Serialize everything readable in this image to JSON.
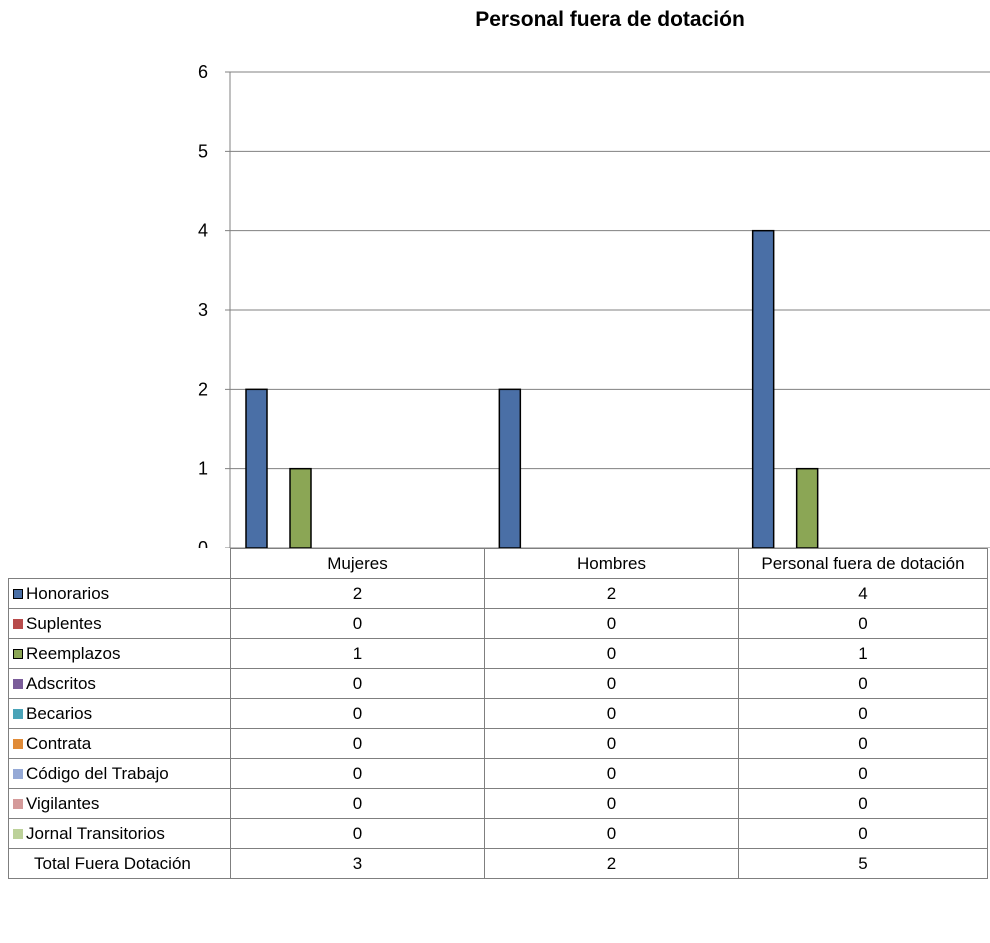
{
  "chart_data": {
    "type": "bar",
    "title": "Personal fuera de dotación",
    "categories": [
      "Mujeres",
      "Hombres",
      "Personal fuera de dotación"
    ],
    "ylim": [
      0,
      6
    ],
    "yticks": [
      "0",
      "1",
      "2",
      "3",
      "4",
      "5",
      "6"
    ],
    "grid": true,
    "legend": "data-table",
    "series": [
      {
        "name": "Honorarios",
        "color": "#4a6fa6",
        "values": [
          2,
          2,
          4
        ]
      },
      {
        "name": "Suplentes",
        "color": "#b84b4b",
        "values": [
          0,
          0,
          0
        ]
      },
      {
        "name": "Reemplazos",
        "color": "#8ba655",
        "values": [
          1,
          0,
          1
        ]
      },
      {
        "name": "Adscritos",
        "color": "#7a5c99",
        "values": [
          0,
          0,
          0
        ]
      },
      {
        "name": "Becarios",
        "color": "#4aa3b8",
        "values": [
          0,
          0,
          0
        ]
      },
      {
        "name": "Contrata",
        "color": "#e08b38",
        "values": [
          0,
          0,
          0
        ]
      },
      {
        "name": "Código del Trabajo",
        "color": "#95a9d6",
        "values": [
          0,
          0,
          0
        ]
      },
      {
        "name": "Vigilantes",
        "color": "#d49a9a",
        "values": [
          0,
          0,
          0
        ]
      },
      {
        "name": "Jornal Transitorios",
        "color": "#bcd199",
        "values": [
          0,
          0,
          0
        ]
      }
    ],
    "total_row": {
      "label": "Total Fuera  Dotación",
      "values": [
        "3",
        "2",
        "5"
      ]
    }
  }
}
